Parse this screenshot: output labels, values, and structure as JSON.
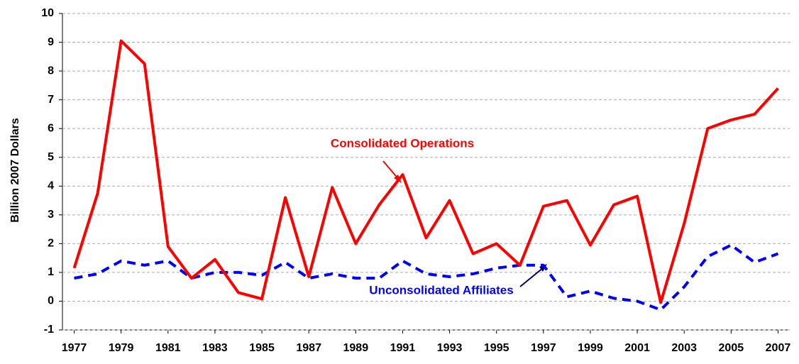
{
  "chart_data": {
    "type": "line",
    "y_label": "Billion 2007 Dollars",
    "x": [
      1977,
      1978,
      1979,
      1980,
      1981,
      1982,
      1983,
      1984,
      1985,
      1986,
      1987,
      1988,
      1989,
      1990,
      1991,
      1992,
      1993,
      1994,
      1995,
      1996,
      1997,
      1998,
      1999,
      2000,
      2001,
      2002,
      2003,
      2004,
      2005,
      2006,
      2007
    ],
    "series": [
      {
        "name": "Consolidated Operations",
        "color": "#ff0000",
        "dash": false,
        "values": [
          1.15,
          3.75,
          9.05,
          8.25,
          1.9,
          0.8,
          1.45,
          0.3,
          0.08,
          3.6,
          0.85,
          3.95,
          2.0,
          3.35,
          4.4,
          2.2,
          3.5,
          1.65,
          2.0,
          1.25,
          3.3,
          3.5,
          1.95,
          3.35,
          3.65,
          -0.05,
          2.7,
          6.0,
          6.3,
          6.5,
          7.4
        ]
      },
      {
        "name": "Unconsolidated Affiliates",
        "color": "#0000ff",
        "dash": true,
        "values": [
          0.8,
          0.95,
          1.4,
          1.25,
          1.4,
          0.8,
          1.0,
          1.0,
          0.9,
          1.35,
          0.8,
          0.95,
          0.8,
          0.8,
          1.4,
          0.95,
          0.85,
          0.95,
          1.15,
          1.25,
          1.25,
          0.15,
          0.35,
          0.1,
          0.0,
          -0.3,
          0.5,
          1.55,
          1.95,
          1.35,
          1.65
        ]
      }
    ],
    "xlim": [
      1977,
      2007
    ],
    "xticks": [
      1977,
      1979,
      1981,
      1983,
      1985,
      1987,
      1989,
      1991,
      1993,
      1995,
      1997,
      1999,
      2001,
      2003,
      2005,
      2007
    ],
    "ylim": [
      -1,
      10
    ],
    "yticks": [
      -1,
      0,
      1,
      2,
      3,
      4,
      5,
      6,
      7,
      8,
      9,
      10
    ],
    "grid": true
  }
}
